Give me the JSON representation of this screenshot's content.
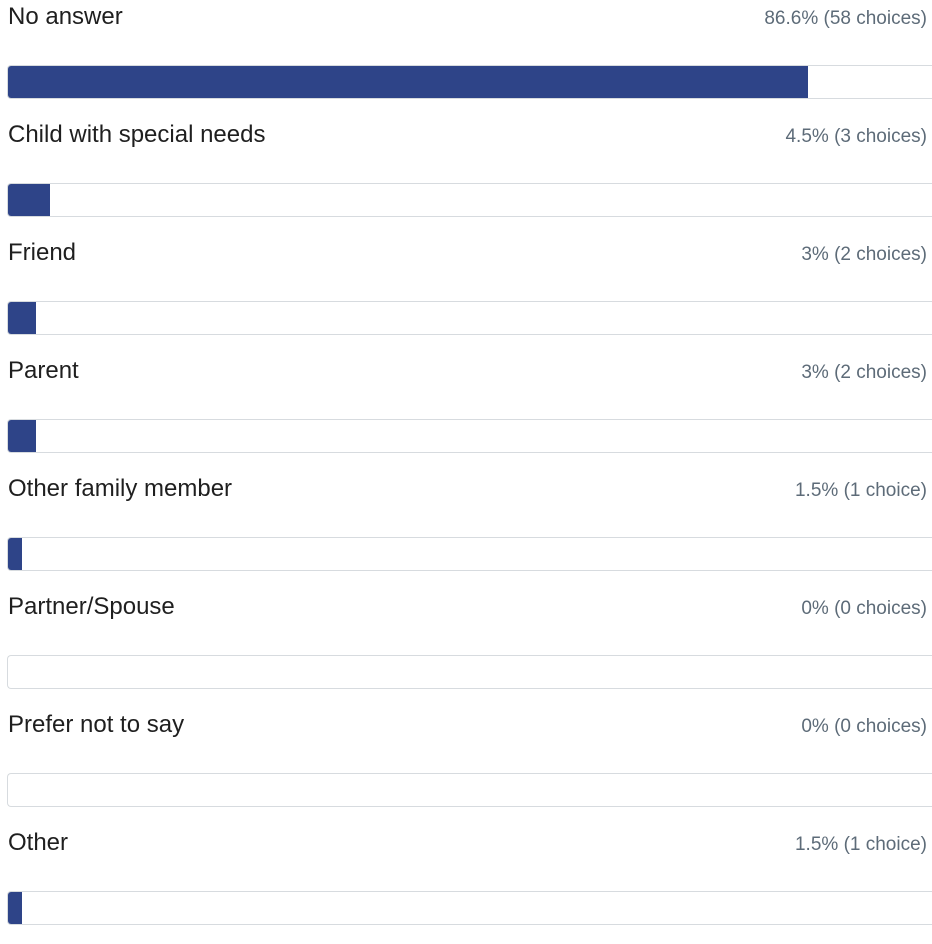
{
  "chart_data": {
    "type": "bar",
    "orientation": "horizontal",
    "categories": [
      "No answer",
      "Child with special needs",
      "Friend",
      "Parent",
      "Other  family  member",
      "Partner/Spouse",
      "Prefer not to say",
      "Other"
    ],
    "values": [
      86.6,
      4.5,
      3,
      3,
      1.5,
      0,
      0,
      1.5
    ],
    "counts": [
      58,
      3,
      2,
      2,
      1,
      0,
      0,
      1
    ],
    "value_labels": [
      "86.6%  (58  choices)",
      "4.5% (3 choices)",
      "3% (2 choices)",
      "3% (2 choices)",
      "1.5% (1 choice)",
      "0% (0 choices)",
      "0% (0 choices)",
      "1.5% (1 choice)"
    ],
    "xlim": [
      0,
      100
    ],
    "colors": {
      "bar": "#2e4488",
      "track_border": "#d7dbdf",
      "label": "#1f1f1f",
      "stat": "#5d6b78"
    }
  }
}
